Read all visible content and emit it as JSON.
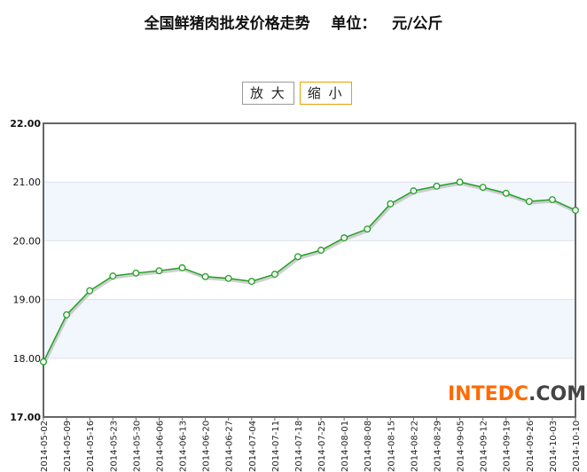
{
  "chart_data": {
    "type": "line",
    "title": "全国鲜猪肉批发价格走势    单位：   元/公斤",
    "xlabel": "",
    "ylabel": "",
    "ylim": [
      17,
      22
    ],
    "yticks": [
      "17.00",
      "18.00",
      "19.00",
      "20.00",
      "21.00",
      "22.00"
    ],
    "grid": true,
    "line_color": "#22a022",
    "band_color": "#f2f7fe",
    "categories": [
      "2014-05-02",
      "2014-05-09",
      "2014-05-16",
      "2014-05-23",
      "2014-05-30",
      "2014-06-06",
      "2014-06-13",
      "2014-06-20",
      "2014-06-27",
      "2014-07-04",
      "2014-07-11",
      "2014-07-18",
      "2014-07-25",
      "2014-08-01",
      "2014-08-08",
      "2014-08-15",
      "2014-08-22",
      "2014-08-29",
      "2014-09-05",
      "2014-09-12",
      "2014-09-19",
      "2014-09-26",
      "2014-10-03",
      "2014-10-10"
    ],
    "values": [
      17.94,
      18.74,
      19.15,
      19.4,
      19.45,
      19.49,
      19.54,
      19.39,
      19.36,
      19.31,
      19.43,
      19.73,
      19.84,
      20.05,
      20.2,
      20.63,
      20.85,
      20.93,
      21.0,
      20.91,
      20.81,
      20.67,
      20.7,
      20.52
    ]
  },
  "controls": {
    "zoom_in": "放 大",
    "zoom_out": "缩 小"
  },
  "watermark": {
    "part1": "INTEDC",
    "part2": ".COM"
  }
}
